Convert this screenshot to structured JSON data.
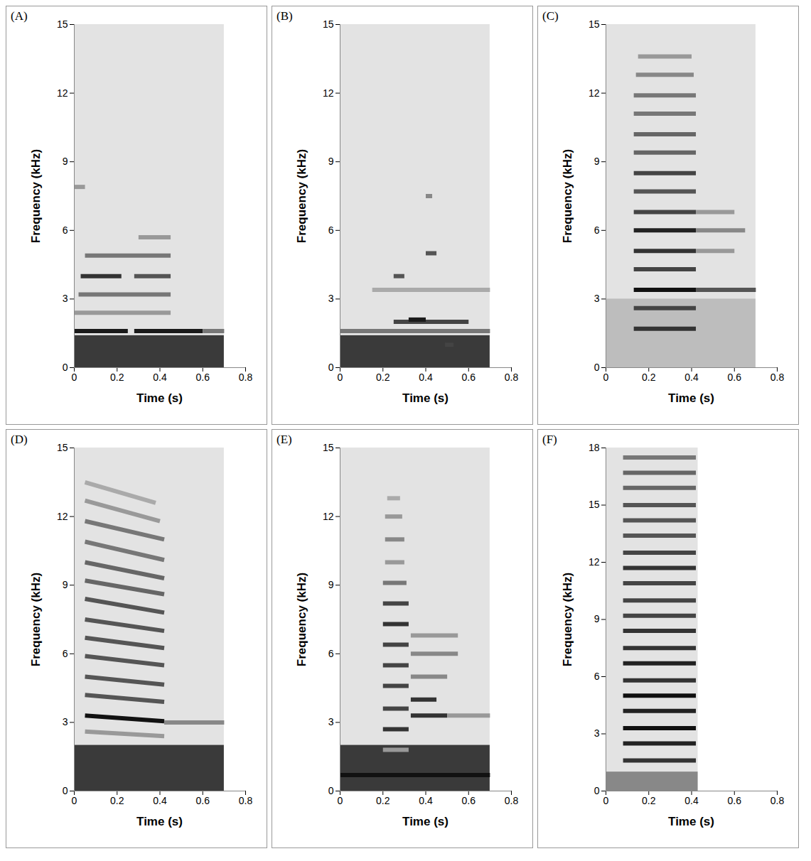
{
  "chart_data": [
    {
      "type": "spectrogram",
      "title": "(A)",
      "x_label": "Time (s)",
      "y_label": "Frequency (kHz)",
      "xlim": [
        0,
        0.8
      ],
      "xticks": [
        0,
        0.2,
        0.4,
        0.6,
        0.8
      ],
      "ylim": [
        0,
        15
      ],
      "yticks": [
        0,
        3,
        6,
        9,
        12,
        15
      ],
      "recording": [
        0,
        0.7
      ],
      "low_noise": {
        "y": [
          0,
          1.4
        ],
        "color": "#3a3a3a"
      },
      "bands": [
        {
          "x": [
            0,
            0.25
          ],
          "y": [
            1.6,
            1.6
          ],
          "color": "#1a1a1a"
        },
        {
          "x": [
            0.28,
            0.6
          ],
          "y": [
            1.6,
            1.6
          ],
          "color": "#1a1a1a"
        },
        {
          "x": [
            0.6,
            0.7
          ],
          "y": [
            1.6,
            1.6
          ],
          "color": "#777777"
        },
        {
          "x": [
            0,
            0.45
          ],
          "y": [
            2.4,
            2.4
          ],
          "color": "#999999"
        },
        {
          "x": [
            0.02,
            0.45
          ],
          "y": [
            3.2,
            3.2
          ],
          "color": "#777777"
        },
        {
          "x": [
            0.03,
            0.22
          ],
          "y": [
            4.0,
            4.0
          ],
          "color": "#333333"
        },
        {
          "x": [
            0.28,
            0.45
          ],
          "y": [
            4.0,
            4.0
          ],
          "color": "#555555"
        },
        {
          "x": [
            0.05,
            0.45
          ],
          "y": [
            4.9,
            4.9
          ],
          "color": "#777777"
        },
        {
          "x": [
            0.3,
            0.45
          ],
          "y": [
            5.7,
            5.7
          ],
          "color": "#999999"
        },
        {
          "x": [
            0,
            0.05
          ],
          "y": [
            7.9,
            7.9
          ],
          "color": "#999999"
        }
      ]
    },
    {
      "type": "spectrogram",
      "title": "(B)",
      "x_label": "Time (s)",
      "y_label": "Frequency (kHz)",
      "xlim": [
        0,
        0.8
      ],
      "xticks": [
        0,
        0.2,
        0.4,
        0.6,
        0.8
      ],
      "ylim": [
        0,
        15
      ],
      "yticks": [
        0,
        3,
        6,
        9,
        12,
        15
      ],
      "recording": [
        0,
        0.7
      ],
      "low_noise": {
        "y": [
          0,
          1.4
        ],
        "color": "#3a3a3a"
      },
      "bands": [
        {
          "x": [
            0,
            0.7
          ],
          "y": [
            1.6,
            1.6
          ],
          "color": "#777777"
        },
        {
          "x": [
            0.15,
            0.7
          ],
          "y": [
            3.4,
            3.4
          ],
          "color": "#aaaaaa"
        },
        {
          "x": [
            0.25,
            0.6
          ],
          "y": [
            2.0,
            2.0
          ],
          "color": "#444444"
        },
        {
          "x": [
            0.32,
            0.4
          ],
          "y": [
            2.1,
            2.1
          ],
          "color": "#1a1a1a"
        },
        {
          "x": [
            0.25,
            0.3
          ],
          "y": [
            4.0,
            4.0
          ],
          "color": "#555555"
        },
        {
          "x": [
            0.4,
            0.45
          ],
          "y": [
            5.0,
            5.0
          ],
          "color": "#555555"
        },
        {
          "x": [
            0.4,
            0.43
          ],
          "y": [
            7.5,
            7.5
          ],
          "color": "#888888"
        },
        {
          "x": [
            0.49,
            0.53
          ],
          "y": [
            1.0,
            1.0
          ],
          "color": "#444444"
        }
      ]
    },
    {
      "type": "spectrogram",
      "title": "(C)",
      "x_label": "Time (s)",
      "y_label": "Frequency (kHz)",
      "xlim": [
        0,
        0.8
      ],
      "xticks": [
        0,
        0.2,
        0.4,
        0.6,
        0.8
      ],
      "ylim": [
        0,
        15
      ],
      "yticks": [
        0,
        3,
        6,
        9,
        12,
        15
      ],
      "recording": [
        0,
        0.7
      ],
      "low_noise": {
        "y": [
          0,
          3
        ],
        "color": "#bdbdbd"
      },
      "bands": [
        {
          "x": [
            0.13,
            0.42
          ],
          "y": [
            1.7,
            1.7
          ],
          "color": "#333333"
        },
        {
          "x": [
            0.13,
            0.42
          ],
          "y": [
            2.6,
            2.6
          ],
          "color": "#444444"
        },
        {
          "x": [
            0.13,
            0.42
          ],
          "y": [
            3.4,
            3.4
          ],
          "color": "#111111"
        },
        {
          "x": [
            0.13,
            0.42
          ],
          "y": [
            4.3,
            4.3
          ],
          "color": "#444444"
        },
        {
          "x": [
            0.13,
            0.42
          ],
          "y": [
            5.1,
            5.1
          ],
          "color": "#333333"
        },
        {
          "x": [
            0.13,
            0.42
          ],
          "y": [
            6.0,
            6.0
          ],
          "color": "#222222"
        },
        {
          "x": [
            0.13,
            0.42
          ],
          "y": [
            6.8,
            6.8
          ],
          "color": "#444444"
        },
        {
          "x": [
            0.13,
            0.42
          ],
          "y": [
            7.7,
            7.7
          ],
          "color": "#555555"
        },
        {
          "x": [
            0.13,
            0.42
          ],
          "y": [
            8.5,
            8.5
          ],
          "color": "#444444"
        },
        {
          "x": [
            0.13,
            0.42
          ],
          "y": [
            9.4,
            9.4
          ],
          "color": "#666666"
        },
        {
          "x": [
            0.13,
            0.42
          ],
          "y": [
            10.2,
            10.2
          ],
          "color": "#666666"
        },
        {
          "x": [
            0.13,
            0.42
          ],
          "y": [
            11.1,
            11.1
          ],
          "color": "#777777"
        },
        {
          "x": [
            0.13,
            0.42
          ],
          "y": [
            11.9,
            11.9
          ],
          "color": "#777777"
        },
        {
          "x": [
            0.14,
            0.41
          ],
          "y": [
            12.8,
            12.8
          ],
          "color": "#888888"
        },
        {
          "x": [
            0.15,
            0.4
          ],
          "y": [
            13.6,
            13.6
          ],
          "color": "#999999"
        },
        {
          "x": [
            0.42,
            0.7
          ],
          "y": [
            3.4,
            3.4
          ],
          "color": "#555555"
        },
        {
          "x": [
            0.42,
            0.6
          ],
          "y": [
            5.1,
            5.1
          ],
          "color": "#999999"
        },
        {
          "x": [
            0.42,
            0.65
          ],
          "y": [
            6.0,
            6.0
          ],
          "color": "#888888"
        },
        {
          "x": [
            0.42,
            0.6
          ],
          "y": [
            6.8,
            6.8
          ],
          "color": "#999999"
        }
      ]
    },
    {
      "type": "spectrogram",
      "title": "(D)",
      "x_label": "Time (s)",
      "y_label": "Frequency (kHz)",
      "xlim": [
        0,
        0.8
      ],
      "xticks": [
        0,
        0.2,
        0.4,
        0.6,
        0.8
      ],
      "ylim": [
        0,
        15
      ],
      "yticks": [
        0,
        3,
        6,
        9,
        12,
        15
      ],
      "recording": [
        0,
        0.7
      ],
      "low_noise": {
        "y": [
          0,
          2
        ],
        "color": "#3a3a3a"
      },
      "bands": [
        {
          "x": [
            0.05,
            0.42
          ],
          "y": [
            2.6,
            2.4
          ],
          "color": "#999999"
        },
        {
          "x": [
            0.05,
            0.42
          ],
          "y": [
            3.3,
            3.05
          ],
          "color": "#111111"
        },
        {
          "x": [
            0.05,
            0.42
          ],
          "y": [
            4.2,
            3.9
          ],
          "color": "#555555"
        },
        {
          "x": [
            0.05,
            0.42
          ],
          "y": [
            5.0,
            4.65
          ],
          "color": "#555555"
        },
        {
          "x": [
            0.05,
            0.42
          ],
          "y": [
            5.9,
            5.5
          ],
          "color": "#555555"
        },
        {
          "x": [
            0.05,
            0.42
          ],
          "y": [
            6.7,
            6.25
          ],
          "color": "#555555"
        },
        {
          "x": [
            0.05,
            0.42
          ],
          "y": [
            7.5,
            7.0
          ],
          "color": "#555555"
        },
        {
          "x": [
            0.05,
            0.42
          ],
          "y": [
            8.4,
            7.8
          ],
          "color": "#555555"
        },
        {
          "x": [
            0.05,
            0.42
          ],
          "y": [
            9.2,
            8.6
          ],
          "color": "#666666"
        },
        {
          "x": [
            0.05,
            0.42
          ],
          "y": [
            10.0,
            9.3
          ],
          "color": "#666666"
        },
        {
          "x": [
            0.05,
            0.42
          ],
          "y": [
            10.9,
            10.1
          ],
          "color": "#777777"
        },
        {
          "x": [
            0.05,
            0.42
          ],
          "y": [
            11.8,
            11.0
          ],
          "color": "#777777"
        },
        {
          "x": [
            0.05,
            0.4
          ],
          "y": [
            12.7,
            11.8
          ],
          "color": "#999999"
        },
        {
          "x": [
            0.05,
            0.38
          ],
          "y": [
            13.5,
            12.6
          ],
          "color": "#aaaaaa"
        },
        {
          "x": [
            0.42,
            0.7
          ],
          "y": [
            3.0,
            3.0
          ],
          "color": "#888888"
        }
      ]
    },
    {
      "type": "spectrogram",
      "title": "(E)",
      "x_label": "Time (s)",
      "y_label": "Frequency (kHz)",
      "xlim": [
        0,
        0.8
      ],
      "xticks": [
        0,
        0.2,
        0.4,
        0.6,
        0.8
      ],
      "ylim": [
        0,
        15
      ],
      "yticks": [
        0,
        3,
        6,
        9,
        12,
        15
      ],
      "recording": [
        0,
        0.7
      ],
      "low_noise": {
        "y": [
          0,
          2
        ],
        "color": "#3a3a3a"
      },
      "bands": [
        {
          "x": [
            0,
            0.7
          ],
          "y": [
            0.7,
            0.7
          ],
          "color": "#111111"
        },
        {
          "x": [
            0.2,
            0.32
          ],
          "y": [
            1.8,
            1.8
          ],
          "color": "#999999"
        },
        {
          "x": [
            0.2,
            0.32
          ],
          "y": [
            2.7,
            2.7
          ],
          "color": "#333333"
        },
        {
          "x": [
            0.2,
            0.32
          ],
          "y": [
            3.6,
            3.6
          ],
          "color": "#444444"
        },
        {
          "x": [
            0.2,
            0.32
          ],
          "y": [
            4.6,
            4.6
          ],
          "color": "#444444"
        },
        {
          "x": [
            0.2,
            0.32
          ],
          "y": [
            5.5,
            5.5
          ],
          "color": "#444444"
        },
        {
          "x": [
            0.2,
            0.32
          ],
          "y": [
            6.4,
            6.4
          ],
          "color": "#444444"
        },
        {
          "x": [
            0.2,
            0.32
          ],
          "y": [
            7.3,
            7.3
          ],
          "color": "#333333"
        },
        {
          "x": [
            0.2,
            0.32
          ],
          "y": [
            8.2,
            8.2
          ],
          "color": "#444444"
        },
        {
          "x": [
            0.2,
            0.31
          ],
          "y": [
            9.1,
            9.1
          ],
          "color": "#777777"
        },
        {
          "x": [
            0.21,
            0.3
          ],
          "y": [
            10.0,
            10.0
          ],
          "color": "#999999"
        },
        {
          "x": [
            0.21,
            0.3
          ],
          "y": [
            11.0,
            11.0
          ],
          "color": "#888888"
        },
        {
          "x": [
            0.21,
            0.29
          ],
          "y": [
            12.0,
            12.0
          ],
          "color": "#999999"
        },
        {
          "x": [
            0.22,
            0.28
          ],
          "y": [
            12.8,
            12.8
          ],
          "color": "#aaaaaa"
        },
        {
          "x": [
            0.33,
            0.5
          ],
          "y": [
            3.3,
            3.3
          ],
          "color": "#333333"
        },
        {
          "x": [
            0.33,
            0.45
          ],
          "y": [
            4.0,
            4.0
          ],
          "color": "#333333"
        },
        {
          "x": [
            0.33,
            0.5
          ],
          "y": [
            5.0,
            5.0
          ],
          "color": "#888888"
        },
        {
          "x": [
            0.33,
            0.55
          ],
          "y": [
            6.0,
            6.0
          ],
          "color": "#888888"
        },
        {
          "x": [
            0.33,
            0.55
          ],
          "y": [
            6.8,
            6.8
          ],
          "color": "#999999"
        },
        {
          "x": [
            0.5,
            0.7
          ],
          "y": [
            3.3,
            3.3
          ],
          "color": "#999999"
        }
      ]
    },
    {
      "type": "spectrogram",
      "title": "(F)",
      "x_label": "Time (s)",
      "y_label": "Frequency (kHz)",
      "xlim": [
        0,
        0.8
      ],
      "xticks": [
        0,
        0.2,
        0.4,
        0.6,
        0.8
      ],
      "ylim": [
        0,
        18
      ],
      "yticks": [
        0,
        3,
        6,
        9,
        12,
        15,
        18
      ],
      "recording": [
        0,
        0.43
      ],
      "low_noise": {
        "y": [
          0,
          1
        ],
        "color": "#888888"
      },
      "bands": [
        {
          "x": [
            0.08,
            0.42
          ],
          "y": [
            1.6,
            1.6
          ],
          "color": "#333333"
        },
        {
          "x": [
            0.08,
            0.42
          ],
          "y": [
            2.5,
            2.5
          ],
          "color": "#222222"
        },
        {
          "x": [
            0.08,
            0.42
          ],
          "y": [
            3.3,
            3.3
          ],
          "color": "#111111"
        },
        {
          "x": [
            0.08,
            0.42
          ],
          "y": [
            4.2,
            4.2
          ],
          "color": "#222222"
        },
        {
          "x": [
            0.08,
            0.42
          ],
          "y": [
            5.0,
            5.0
          ],
          "color": "#111111"
        },
        {
          "x": [
            0.08,
            0.42
          ],
          "y": [
            5.8,
            5.8
          ],
          "color": "#333333"
        },
        {
          "x": [
            0.08,
            0.42
          ],
          "y": [
            6.7,
            6.7
          ],
          "color": "#222222"
        },
        {
          "x": [
            0.08,
            0.42
          ],
          "y": [
            7.5,
            7.5
          ],
          "color": "#333333"
        },
        {
          "x": [
            0.08,
            0.42
          ],
          "y": [
            8.4,
            8.4
          ],
          "color": "#333333"
        },
        {
          "x": [
            0.08,
            0.42
          ],
          "y": [
            9.2,
            9.2
          ],
          "color": "#444444"
        },
        {
          "x": [
            0.08,
            0.42
          ],
          "y": [
            10.0,
            10.0
          ],
          "color": "#444444"
        },
        {
          "x": [
            0.08,
            0.42
          ],
          "y": [
            10.9,
            10.9
          ],
          "color": "#444444"
        },
        {
          "x": [
            0.08,
            0.42
          ],
          "y": [
            11.7,
            11.7
          ],
          "color": "#333333"
        },
        {
          "x": [
            0.08,
            0.42
          ],
          "y": [
            12.5,
            12.5
          ],
          "color": "#444444"
        },
        {
          "x": [
            0.08,
            0.42
          ],
          "y": [
            13.4,
            13.4
          ],
          "color": "#555555"
        },
        {
          "x": [
            0.08,
            0.42
          ],
          "y": [
            14.2,
            14.2
          ],
          "color": "#555555"
        },
        {
          "x": [
            0.08,
            0.42
          ],
          "y": [
            15.0,
            15.0
          ],
          "color": "#555555"
        },
        {
          "x": [
            0.08,
            0.42
          ],
          "y": [
            15.9,
            15.9
          ],
          "color": "#666666"
        },
        {
          "x": [
            0.08,
            0.42
          ],
          "y": [
            16.7,
            16.7
          ],
          "color": "#666666"
        },
        {
          "x": [
            0.08,
            0.42
          ],
          "y": [
            17.5,
            17.5
          ],
          "color": "#777777"
        }
      ]
    }
  ]
}
